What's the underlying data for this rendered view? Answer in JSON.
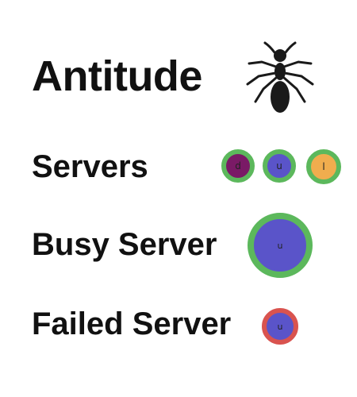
{
  "app": {
    "title": "Antitude",
    "logo_icon": "ant-icon"
  },
  "legend": {
    "servers": {
      "label": "Servers",
      "nodes": [
        {
          "letter": "d",
          "fill": "#7a1a66",
          "ring": "#5cb85c"
        },
        {
          "letter": "u",
          "fill": "#5a54c9",
          "ring": "#5cb85c"
        },
        {
          "letter": "l",
          "fill": "#f0ad4e",
          "ring": "#5cb85c"
        }
      ]
    },
    "busy": {
      "label": "Busy Server",
      "node": {
        "letter": "u",
        "fill": "#5a54c9",
        "ring": "#5cb85c"
      }
    },
    "failed": {
      "label": "Failed Server",
      "node": {
        "letter": "u",
        "fill": "#5a54c9",
        "ring": "#d9534f"
      }
    }
  }
}
